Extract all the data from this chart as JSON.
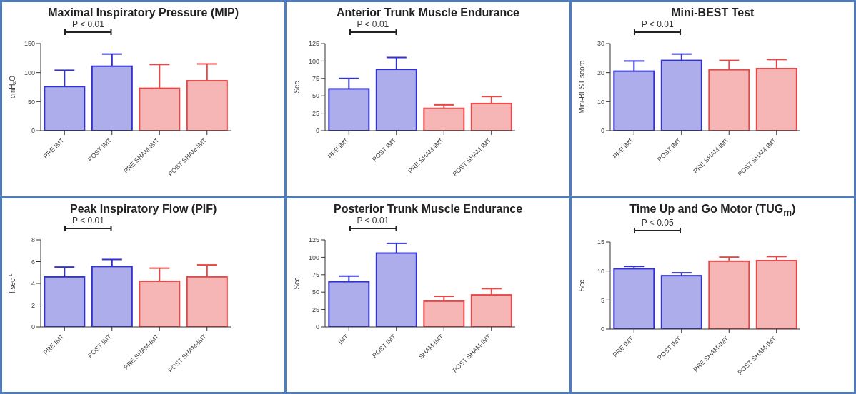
{
  "chart_data": [
    {
      "type": "bar",
      "title": "Maximal Inspiratory Pressure (MIP)",
      "ylabel": "cmH₂O",
      "categories": [
        "PRE IMT",
        "POST IMT",
        "PRE SHAM-IMT",
        "POST SHAM-IMT"
      ],
      "values": [
        76,
        111,
        73,
        86
      ],
      "errors": [
        [
          76,
          104
        ],
        [
          111,
          132
        ],
        [
          73,
          114
        ],
        [
          86,
          115
        ]
      ],
      "colors": [
        "#3333cc",
        "#3333cc",
        "#e84848",
        "#e84848"
      ],
      "ylim": [
        0,
        150
      ],
      "yticks": [
        0,
        50,
        100,
        150
      ],
      "annotations": [
        "P < 0.01"
      ],
      "grid": false,
      "legend": false
    },
    {
      "type": "bar",
      "title": "Anterior Trunk Muscle Endurance",
      "ylabel": "Sec",
      "categories": [
        "PRE IMT",
        "POST IMT",
        "PRE SHAM-IMT",
        "POST SHAM-IMT"
      ],
      "values": [
        60,
        88,
        32,
        39
      ],
      "errors": [
        [
          60,
          75
        ],
        [
          88,
          105
        ],
        [
          32,
          37
        ],
        [
          39,
          49
        ]
      ],
      "colors": [
        "#3333cc",
        "#3333cc",
        "#e84848",
        "#e84848"
      ],
      "ylim": [
        0,
        125
      ],
      "yticks": [
        0,
        25,
        50,
        75,
        100,
        125
      ],
      "annotations": [
        "P < 0.01"
      ],
      "grid": false,
      "legend": false
    },
    {
      "type": "bar",
      "title": "Mini-BEST Test",
      "ylabel": "Mini-BEST score",
      "categories": [
        "PRE IMT",
        "POST IMT",
        "PRE SHAM-IMT",
        "POST SHAM-IMT"
      ],
      "values": [
        20.5,
        24.2,
        21,
        21.4
      ],
      "errors": [
        [
          20.5,
          24
        ],
        [
          24.2,
          26.4
        ],
        [
          21,
          24.2
        ],
        [
          21.4,
          24.5
        ]
      ],
      "colors": [
        "#3333cc",
        "#3333cc",
        "#e84848",
        "#e84848"
      ],
      "ylim": [
        0,
        30
      ],
      "yticks": [
        0,
        10,
        20,
        30
      ],
      "annotations": [
        "P < 0.01"
      ],
      "grid": false,
      "legend": false
    },
    {
      "type": "bar",
      "title": "Peak Inspiratory Flow (PIF)",
      "ylabel": "l.sec$^{-1}$",
      "categories": [
        "PRE IMT",
        "POST IMT",
        "PRE SHAM-IMT",
        "POST SHAM-IMT"
      ],
      "values": [
        4.6,
        5.55,
        4.2,
        4.6
      ],
      "errors": [
        [
          4.6,
          5.5
        ],
        [
          5.55,
          6.2
        ],
        [
          4.2,
          5.4
        ],
        [
          4.6,
          5.7
        ]
      ],
      "colors": [
        "#3333cc",
        "#3333cc",
        "#e84848",
        "#e84848"
      ],
      "ylim": [
        0,
        8
      ],
      "yticks": [
        0,
        2,
        4,
        6,
        8
      ],
      "annotations": [
        "P < 0.01"
      ],
      "grid": false,
      "legend": false
    },
    {
      "type": "bar",
      "title": "Posterior Trunk Muscle Endurance",
      "ylabel": "Sec",
      "categories": [
        "IMT",
        "POST IMT",
        "SHAM-IMT",
        "POST SHAM-IMT"
      ],
      "values": [
        65,
        106,
        37,
        46
      ],
      "errors": [
        [
          65,
          73
        ],
        [
          106,
          120
        ],
        [
          37,
          44
        ],
        [
          46,
          55
        ]
      ],
      "colors": [
        "#3333cc",
        "#3333cc",
        "#e84848",
        "#e84848"
      ],
      "ylim": [
        0,
        125
      ],
      "yticks": [
        0,
        25,
        50,
        75,
        100,
        125
      ],
      "annotations": [
        "P < 0.01"
      ],
      "grid": false,
      "legend": false
    },
    {
      "type": "bar",
      "title": "Time Up and Go Motor (TUG$_{m}$)",
      "ylabel": "Sec",
      "categories": [
        "PRE IMT",
        "POST IMT",
        "PRE SHAM-IMT",
        "POST SHAM-IMT"
      ],
      "values": [
        10.4,
        9.2,
        11.7,
        11.8
      ],
      "errors": [
        [
          10.4,
          10.8
        ],
        [
          9.2,
          9.7
        ],
        [
          11.7,
          12.4
        ],
        [
          11.8,
          12.5
        ]
      ],
      "colors": [
        "#3333cc",
        "#3333cc",
        "#e84848",
        "#e84848"
      ],
      "ylim": [
        0,
        15
      ],
      "yticks": [
        0,
        5,
        10,
        15
      ],
      "annotations": [
        "P < 0.05"
      ],
      "grid": false,
      "legend": false
    }
  ]
}
